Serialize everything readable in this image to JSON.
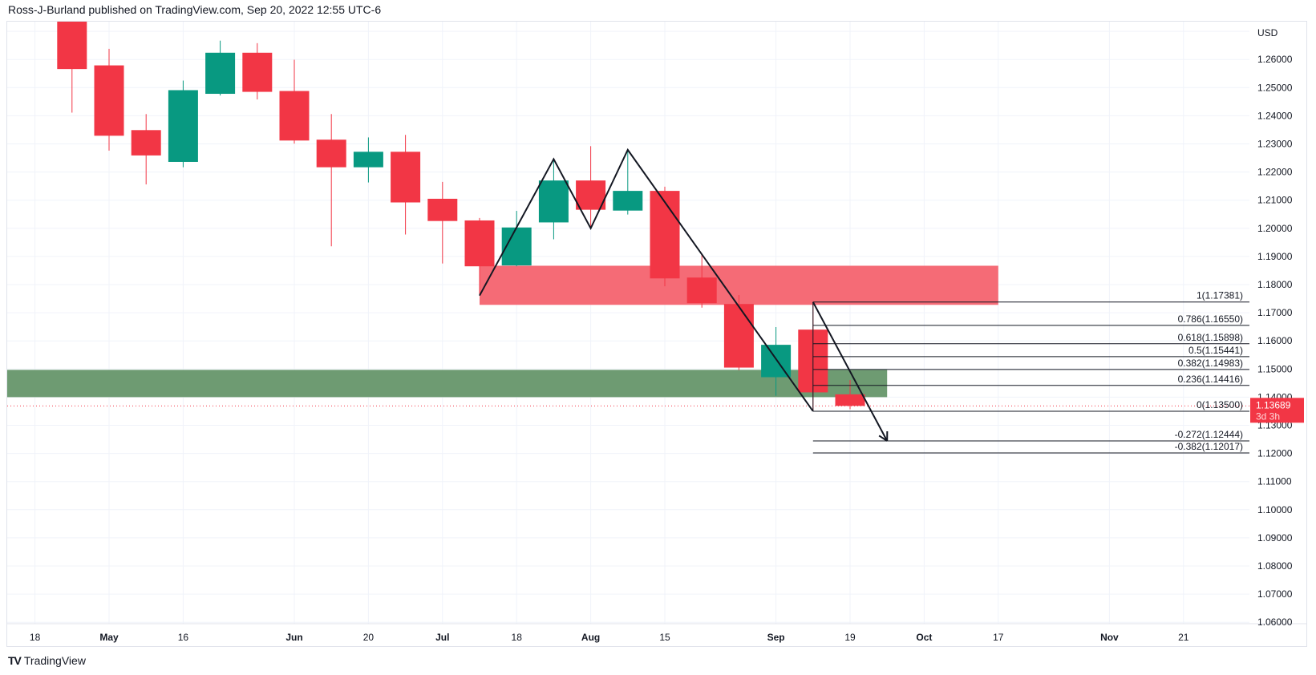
{
  "header": {
    "publisher_line": "Ross-J-Burland published on TradingView.com, Sep 20, 2022 12:55 UTC-6"
  },
  "footer": {
    "brand": "TradingView",
    "logo_mark": "TV"
  },
  "colors": {
    "up": "#089981",
    "down": "#f23645",
    "resistance_zone": "#f56b76",
    "support_zone": "#6e9b72",
    "fib_line": "#131722",
    "pattern_line": "#131722"
  },
  "chart_data": {
    "type": "candlestick",
    "interval": "weekly",
    "currency_label": "USD",
    "ylim": [
      1.06,
      1.27
    ],
    "grid": true,
    "y_ticks": [
      "1.06000",
      "1.07000",
      "1.08000",
      "1.09000",
      "1.10000",
      "1.11000",
      "1.12000",
      "1.13000",
      "1.14000",
      "1.15000",
      "1.16000",
      "1.17000",
      "1.18000",
      "1.19000",
      "1.20000",
      "1.21000",
      "1.22000",
      "1.23000",
      "1.24000",
      "1.25000",
      "1.26000"
    ],
    "x_ticks": [
      {
        "date": "2022-04-18",
        "label": "18",
        "bold": false
      },
      {
        "date": "2022-05-02",
        "label": "May",
        "bold": true
      },
      {
        "date": "2022-05-16",
        "label": "16",
        "bold": false
      },
      {
        "date": "2022-06-06",
        "label": "Jun",
        "bold": true
      },
      {
        "date": "2022-06-20",
        "label": "20",
        "bold": false
      },
      {
        "date": "2022-07-04",
        "label": "Jul",
        "bold": true
      },
      {
        "date": "2022-07-18",
        "label": "18",
        "bold": false
      },
      {
        "date": "2022-08-01",
        "label": "Aug",
        "bold": true
      },
      {
        "date": "2022-08-15",
        "label": "15",
        "bold": false
      },
      {
        "date": "2022-09-05",
        "label": "Sep",
        "bold": true
      },
      {
        "date": "2022-09-19",
        "label": "19",
        "bold": false
      },
      {
        "date": "2022-10-03",
        "label": "Oct",
        "bold": true
      },
      {
        "date": "2022-10-17",
        "label": "17",
        "bold": false
      },
      {
        "date": "2022-11-07",
        "label": "Nov",
        "bold": true
      },
      {
        "date": "2022-11-21",
        "label": "21",
        "bold": false
      }
    ],
    "candles": [
      {
        "date": "2022-04-25",
        "open": 1.2838,
        "high": 1.2853,
        "low": 1.2411,
        "close": 1.2566
      },
      {
        "date": "2022-05-02",
        "open": 1.2579,
        "high": 1.2638,
        "low": 1.2276,
        "close": 1.2329
      },
      {
        "date": "2022-05-09",
        "open": 1.2349,
        "high": 1.2406,
        "low": 1.2156,
        "close": 1.2259
      },
      {
        "date": "2022-05-16",
        "open": 1.2236,
        "high": 1.2525,
        "low": 1.2217,
        "close": 1.2491
      },
      {
        "date": "2022-05-23",
        "open": 1.2478,
        "high": 1.2667,
        "low": 1.2472,
        "close": 1.2624
      },
      {
        "date": "2022-05-30",
        "open": 1.2624,
        "high": 1.2658,
        "low": 1.2458,
        "close": 1.2485
      },
      {
        "date": "2022-06-06",
        "open": 1.2488,
        "high": 1.2599,
        "low": 1.2301,
        "close": 1.2312
      },
      {
        "date": "2022-06-13",
        "open": 1.2315,
        "high": 1.2406,
        "low": 1.1936,
        "close": 1.2217
      },
      {
        "date": "2022-06-20",
        "open": 1.2217,
        "high": 1.2323,
        "low": 1.2163,
        "close": 1.2272
      },
      {
        "date": "2022-06-27",
        "open": 1.2272,
        "high": 1.2332,
        "low": 1.1978,
        "close": 1.2092
      },
      {
        "date": "2022-07-04",
        "open": 1.2105,
        "high": 1.2165,
        "low": 1.1875,
        "close": 1.2026
      },
      {
        "date": "2022-07-11",
        "open": 1.2028,
        "high": 1.2037,
        "low": 1.1761,
        "close": 1.1865
      },
      {
        "date": "2022-07-18",
        "open": 1.1868,
        "high": 1.2062,
        "low": 1.1865,
        "close": 1.2003
      },
      {
        "date": "2022-07-25",
        "open": 1.2021,
        "high": 1.2246,
        "low": 1.1961,
        "close": 1.217
      },
      {
        "date": "2022-08-01",
        "open": 1.217,
        "high": 1.2292,
        "low": 1.2,
        "close": 1.2066
      },
      {
        "date": "2022-08-08",
        "open": 1.2063,
        "high": 1.2279,
        "low": 1.2049,
        "close": 1.2133
      },
      {
        "date": "2022-08-15",
        "open": 1.2133,
        "high": 1.2148,
        "low": 1.1794,
        "close": 1.1822
      },
      {
        "date": "2022-08-22",
        "open": 1.1825,
        "high": 1.1905,
        "low": 1.1718,
        "close": 1.1734
      },
      {
        "date": "2022-08-29",
        "open": 1.1731,
        "high": 1.1763,
        "low": 1.1496,
        "close": 1.1505
      },
      {
        "date": "2022-09-05",
        "open": 1.1471,
        "high": 1.1649,
        "low": 1.1405,
        "close": 1.1586
      },
      {
        "date": "2022-09-12",
        "open": 1.164,
        "high": 1.1738,
        "low": 1.135,
        "close": 1.1417
      },
      {
        "date": "2022-09-19",
        "open": 1.141,
        "high": 1.1461,
        "low": 1.1357,
        "close": 1.13689
      }
    ],
    "last_price": {
      "value": "1.13689",
      "countdown": "3d 3h",
      "price": 1.13689
    },
    "zones": [
      {
        "kind": "resistance",
        "from": "2022-07-11",
        "to": "2022-10-17",
        "top": 1.1867,
        "bottom": 1.1728
      },
      {
        "kind": "support",
        "from": "2022-04-04",
        "to": "2022-09-26",
        "top": 1.1497,
        "bottom": 1.14
      }
    ],
    "pattern_line": [
      {
        "date": "2022-07-11",
        "price": 1.1761
      },
      {
        "date": "2022-07-25",
        "price": 1.2246
      },
      {
        "date": "2022-08-01",
        "price": 1.2
      },
      {
        "date": "2022-08-08",
        "price": 1.2279
      },
      {
        "date": "2022-09-12",
        "price": 1.135
      }
    ],
    "projection_arrow": {
      "from": {
        "date": "2022-09-12",
        "price": 1.17381
      },
      "to": {
        "date": "2022-09-26",
        "price": 1.12444
      }
    },
    "fibonacci": {
      "anchor_date": "2022-09-12",
      "levels": [
        {
          "ratio": 1,
          "price": 1.17381,
          "label": "1(1.17381)"
        },
        {
          "ratio": 0.786,
          "price": 1.1655,
          "label": "0.786(1.16550)"
        },
        {
          "ratio": 0.618,
          "price": 1.15898,
          "label": "0.618(1.15898)"
        },
        {
          "ratio": 0.5,
          "price": 1.15441,
          "label": "0.5(1.15441)"
        },
        {
          "ratio": 0.382,
          "price": 1.14983,
          "label": "0.382(1.14983)"
        },
        {
          "ratio": 0.236,
          "price": 1.14416,
          "label": "0.236(1.14416)"
        },
        {
          "ratio": 0,
          "price": 1.135,
          "label": "0(1.13500)"
        },
        {
          "ratio": -0.272,
          "price": 1.12444,
          "label": "-0.272(1.12444)"
        },
        {
          "ratio": -0.382,
          "price": 1.12017,
          "label": "-0.382(1.12017)"
        }
      ]
    }
  }
}
